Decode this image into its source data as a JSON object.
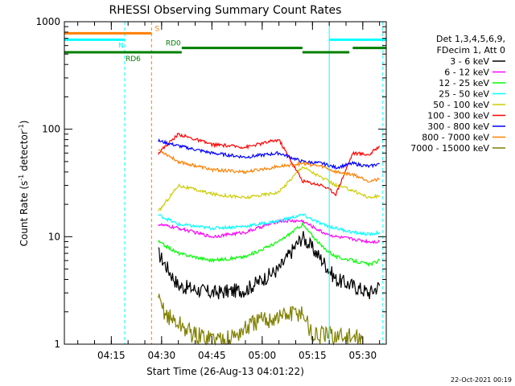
{
  "chart_data": {
    "type": "line",
    "title": "RHESSI Observing Summary Count Rates",
    "xlabel": "Start Time (26-Aug-13 04:01:22)",
    "ylabel": "Count Rate (s",
    "ylabel_sup": "-1",
    "ylabel_tail": " detector",
    "ylabel_close": ")",
    "yscale": "log",
    "ylim": [
      1,
      1000
    ],
    "xlim": [
      "04:01",
      "05:37"
    ],
    "x_ticks": [
      "04:15",
      "04:30",
      "04:45",
      "05:00",
      "05:15",
      "05:30"
    ],
    "y_ticks": [
      "1",
      "10",
      "100",
      "1000"
    ],
    "legend_position": "top-right",
    "legend_header": [
      "Det 1,3,4,5,6,9,",
      "FDecim 1, Att 0"
    ],
    "series": [
      {
        "name": "3 - 6 keV",
        "color": "#000000",
        "x": [
          "04:29",
          "04:35",
          "04:45",
          "04:55",
          "05:05",
          "05:12",
          "05:18",
          "05:22",
          "05:27",
          "05:32",
          "05:35"
        ],
        "values": [
          7,
          3.5,
          3,
          3.2,
          5,
          10,
          6,
          4,
          3.5,
          3,
          3.5
        ]
      },
      {
        "name": "6 - 12 keV",
        "color": "#ff00ff",
        "x": [
          "04:29",
          "04:35",
          "04:45",
          "04:55",
          "05:05",
          "05:12",
          "05:18",
          "05:22",
          "05:27",
          "05:32",
          "05:35"
        ],
        "values": [
          13,
          12,
          10,
          11,
          14,
          14,
          11,
          10,
          9.5,
          9,
          9
        ]
      },
      {
        "name": "12 - 25 keV",
        "color": "#00ff00",
        "x": [
          "04:29",
          "04:35",
          "04:45",
          "04:55",
          "05:05",
          "05:12",
          "05:18",
          "05:22",
          "05:27",
          "05:32",
          "05:35"
        ],
        "values": [
          9,
          7,
          6,
          6.5,
          9,
          13,
          8,
          6.5,
          6,
          5.5,
          6
        ]
      },
      {
        "name": "25 - 50 keV",
        "color": "#00ffff",
        "x": [
          "04:29",
          "04:35",
          "04:45",
          "04:55",
          "05:05",
          "05:12",
          "05:18",
          "05:22",
          "05:27",
          "05:32",
          "05:35"
        ],
        "values": [
          16,
          13,
          12,
          12.5,
          14,
          16,
          13,
          12,
          11,
          10.5,
          11
        ]
      },
      {
        "name": "50 - 100 keV",
        "color": "#cccc00",
        "x": [
          "04:29",
          "04:35",
          "04:45",
          "04:55",
          "05:05",
          "05:12",
          "05:18",
          "05:22",
          "05:27",
          "05:32",
          "05:35"
        ],
        "values": [
          17,
          30,
          25,
          23,
          26,
          45,
          35,
          30,
          27,
          23,
          24
        ]
      },
      {
        "name": "100 - 300 keV",
        "color": "#ff0000",
        "x": [
          "04:29",
          "04:35",
          "04:45",
          "04:55",
          "05:05",
          "05:12",
          "05:18",
          "05:22",
          "05:27",
          "05:32",
          "05:35"
        ],
        "values": [
          60,
          90,
          72,
          68,
          80,
          33,
          30,
          25,
          60,
          58,
          70
        ]
      },
      {
        "name": "300 - 800 keV",
        "color": "#0000ff",
        "x": [
          "04:29",
          "04:35",
          "04:45",
          "04:55",
          "05:05",
          "05:12",
          "05:18",
          "05:22",
          "05:27",
          "05:32",
          "05:35"
        ],
        "values": [
          78,
          70,
          60,
          55,
          60,
          50,
          48,
          44,
          48,
          45,
          48
        ]
      },
      {
        "name": "800 - 7000 keV",
        "color": "#ff8000",
        "x": [
          "04:29",
          "04:35",
          "04:45",
          "04:55",
          "05:05",
          "05:12",
          "05:18",
          "05:22",
          "05:27",
          "05:32",
          "05:35"
        ],
        "values": [
          65,
          50,
          42,
          40,
          45,
          48,
          45,
          40,
          38,
          33,
          34
        ]
      },
      {
        "name": "7000 - 15000 keV",
        "color": "#808000",
        "x": [
          "04:29",
          "04:32",
          "04:40",
          "04:50",
          "04:58",
          "05:05",
          "05:12",
          "05:15",
          "05:22",
          "05:30"
        ],
        "values": [
          2.5,
          1.8,
          1.2,
          1.1,
          1.6,
          1.8,
          2.0,
          1.2,
          1.2,
          1.1
        ]
      }
    ],
    "state_bars": [
      {
        "label": "S",
        "color": "#ff8000",
        "level": 780,
        "segments": [
          [
            "04:01",
            "04:27"
          ]
        ]
      },
      {
        "label": "N",
        "color": "#00ffff",
        "level": 680,
        "segments": [
          [
            "04:01",
            "04:19"
          ],
          [
            "05:20",
            "05:37"
          ]
        ]
      },
      {
        "label": "RD0",
        "color": "#008000",
        "level": 570,
        "segments": [
          [
            "04:36",
            "05:12"
          ],
          [
            "05:27",
            "05:37"
          ]
        ]
      },
      {
        "label": "RD6",
        "color": "#008000",
        "level": 520,
        "segments": [
          [
            "04:01",
            "04:28"
          ],
          [
            "04:28",
            "04:36"
          ],
          [
            "05:12",
            "05:26"
          ]
        ]
      }
    ],
    "vertical_lines": [
      {
        "x": "04:19",
        "color": "#00ffff",
        "style": "dashed"
      },
      {
        "x": "04:27",
        "color": "#ff8000",
        "style": "dashed"
      },
      {
        "x": "05:20",
        "color": "#00ffff",
        "style": "solid"
      },
      {
        "x": "05:36",
        "color": "#00ffff",
        "style": "dashed"
      }
    ],
    "footer_timestamp": "22-Oct-2021 00:19"
  }
}
